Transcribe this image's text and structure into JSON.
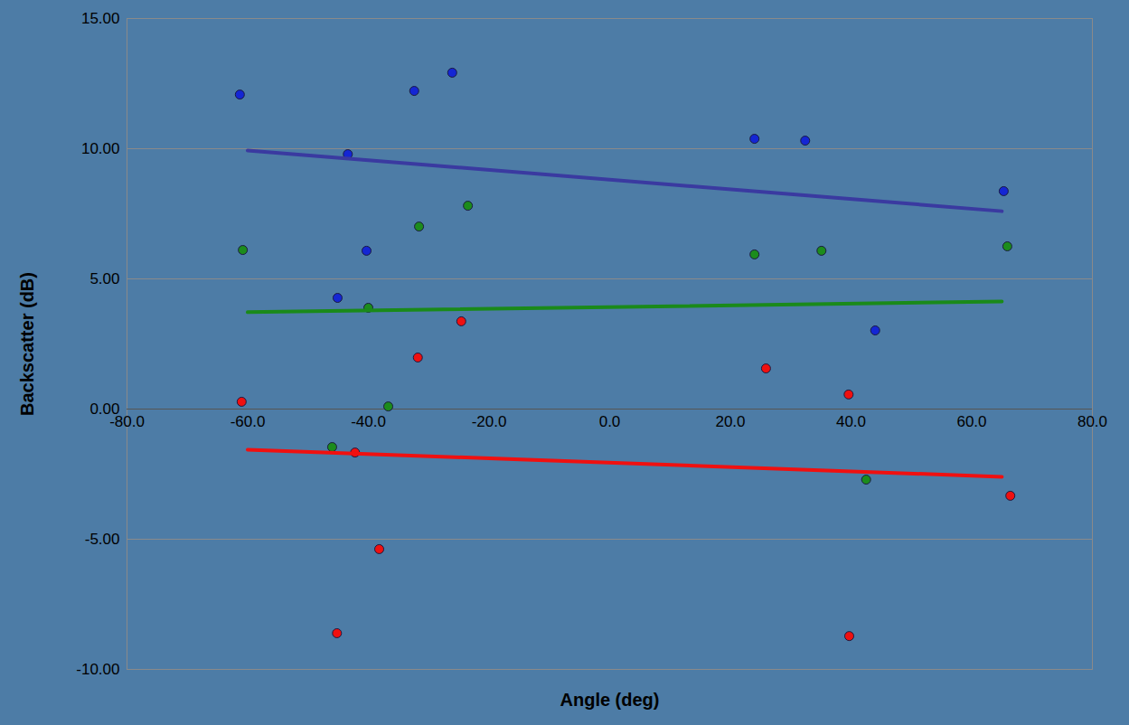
{
  "chart_data": {
    "type": "scatter",
    "x_label": "Angle (deg)",
    "y_label": "Backscatter (dB)",
    "xlim": [
      -80,
      80
    ],
    "xticks": [
      {
        "value": -80,
        "label": "-80.0"
      },
      {
        "value": -60,
        "label": "-60.0"
      },
      {
        "value": -40,
        "label": "-40.0"
      },
      {
        "value": -20,
        "label": "-20.0"
      },
      {
        "value": 0,
        "label": "0.0"
      },
      {
        "value": 20,
        "label": "20.0"
      },
      {
        "value": 40,
        "label": "40.0"
      },
      {
        "value": 60,
        "label": "60.0"
      },
      {
        "value": 80,
        "label": "80.0"
      }
    ],
    "ylim": [
      -10,
      15
    ],
    "yticks": [
      {
        "value": -10,
        "label": "-10.00"
      },
      {
        "value": -5,
        "label": "-5.00"
      },
      {
        "value": 0,
        "label": "0.00"
      },
      {
        "value": 5,
        "label": "5.00"
      },
      {
        "value": 10,
        "label": "10.00"
      },
      {
        "value": 15,
        "label": "15.00"
      }
    ],
    "grid": true,
    "series": [
      {
        "type": "scatter",
        "marker": "circle",
        "color": "#1426d4",
        "x": [
          -61.3,
          -43.4,
          -45.1,
          -40.3,
          -32.4,
          -26.1,
          24.0,
          32.4,
          44.0,
          65.3
        ],
        "values": [
          12.08,
          9.79,
          4.27,
          6.08,
          12.22,
          12.92,
          10.38,
          10.31,
          3.02,
          8.37
        ]
      },
      {
        "type": "scatter",
        "marker": "circle",
        "color": "#1c8c1c",
        "x": [
          -60.8,
          -46.0,
          -40.0,
          -36.7,
          -31.6,
          -23.5,
          24.0,
          35.1,
          42.5,
          65.9
        ],
        "values": [
          6.11,
          -1.46,
          3.89,
          0.1,
          7.01,
          7.81,
          5.94,
          6.08,
          -2.71,
          6.25
        ]
      },
      {
        "type": "scatter",
        "marker": "circle",
        "color": "#f01010",
        "x": [
          -61.0,
          -45.2,
          -42.2,
          -38.2,
          -31.8,
          -24.6,
          25.9,
          39.6,
          39.7,
          66.4
        ],
        "values": [
          0.28,
          -8.61,
          -1.67,
          -5.38,
          1.98,
          3.37,
          1.56,
          0.56,
          -8.72,
          -3.33
        ]
      },
      {
        "type": "line",
        "line_style": "solid",
        "color": "#3a3aa0",
        "x": [
          -60,
          65
        ],
        "values": [
          9.93,
          7.6
        ]
      },
      {
        "type": "line",
        "line_style": "solid",
        "color": "#1a8a1a",
        "x": [
          -60,
          65
        ],
        "values": [
          3.72,
          4.13
        ]
      },
      {
        "type": "line",
        "line_style": "solid",
        "color": "#f01010",
        "x": [
          -60,
          65
        ],
        "values": [
          -1.56,
          -2.6
        ]
      }
    ]
  }
}
